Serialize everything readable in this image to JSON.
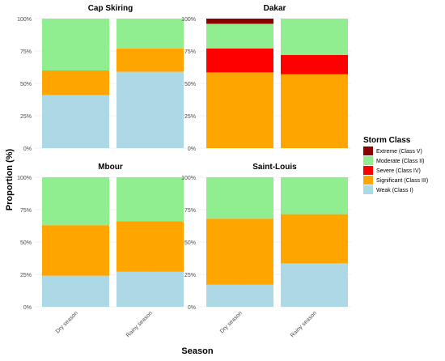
{
  "chart_data": {
    "type": "bar",
    "stacked": true,
    "xlabel": "Season",
    "ylabel": "Proportion (%)",
    "categories": [
      "Dry season",
      "Rainy season"
    ],
    "y_ticks": [
      "0%",
      "25%",
      "50%",
      "75%",
      "100%"
    ],
    "ylim": [
      0,
      100
    ],
    "grid": true,
    "legend_position": "right",
    "legend": {
      "title": "Storm Class",
      "items": [
        {
          "label": "Extreme (Class V)",
          "color": "#8b0000"
        },
        {
          "label": "Moderate (Class II)",
          "color": "#90ee90"
        },
        {
          "label": "Severe (Class IV)",
          "color": "#ff0000"
        },
        {
          "label": "Significant (Class III)",
          "color": "#ffa500"
        },
        {
          "label": "Weak (Class I)",
          "color": "#add8e6"
        }
      ]
    },
    "stack_order": [
      "Weak (Class I)",
      "Significant (Class III)",
      "Severe (Class IV)",
      "Moderate (Class II)",
      "Extreme (Class V)"
    ],
    "panels": [
      {
        "title": "Cap Skiring",
        "series": [
          {
            "name": "Weak (Class I)",
            "values": [
              41,
              59
            ]
          },
          {
            "name": "Significant (Class III)",
            "values": [
              19,
              18
            ]
          },
          {
            "name": "Severe (Class IV)",
            "values": [
              0,
              0
            ]
          },
          {
            "name": "Moderate (Class II)",
            "values": [
              40,
              23
            ]
          },
          {
            "name": "Extreme (Class V)",
            "values": [
              0,
              0
            ]
          }
        ]
      },
      {
        "title": "Dakar",
        "series": [
          {
            "name": "Weak (Class I)",
            "values": [
              0,
              0
            ]
          },
          {
            "name": "Significant (Class III)",
            "values": [
              58.5,
              57
            ]
          },
          {
            "name": "Severe (Class IV)",
            "values": [
              18.5,
              15
            ]
          },
          {
            "name": "Moderate (Class II)",
            "values": [
              19,
              28
            ]
          },
          {
            "name": "Extreme (Class V)",
            "values": [
              4,
              0
            ]
          }
        ]
      },
      {
        "title": "Mbour",
        "series": [
          {
            "name": "Weak (Class I)",
            "values": [
              24,
              27
            ]
          },
          {
            "name": "Significant (Class III)",
            "values": [
              39,
              39
            ]
          },
          {
            "name": "Severe (Class IV)",
            "values": [
              0,
              0
            ]
          },
          {
            "name": "Moderate (Class II)",
            "values": [
              37,
              34
            ]
          },
          {
            "name": "Extreme (Class V)",
            "values": [
              0,
              0
            ]
          }
        ]
      },
      {
        "title": "Saint-Louis",
        "series": [
          {
            "name": "Weak (Class I)",
            "values": [
              17,
              33.5
            ]
          },
          {
            "name": "Significant (Class III)",
            "values": [
              51,
              38
            ]
          },
          {
            "name": "Severe (Class IV)",
            "values": [
              0,
              0
            ]
          },
          {
            "name": "Moderate (Class II)",
            "values": [
              32,
              28.5
            ]
          },
          {
            "name": "Extreme (Class V)",
            "values": [
              0,
              0
            ]
          }
        ]
      }
    ]
  }
}
